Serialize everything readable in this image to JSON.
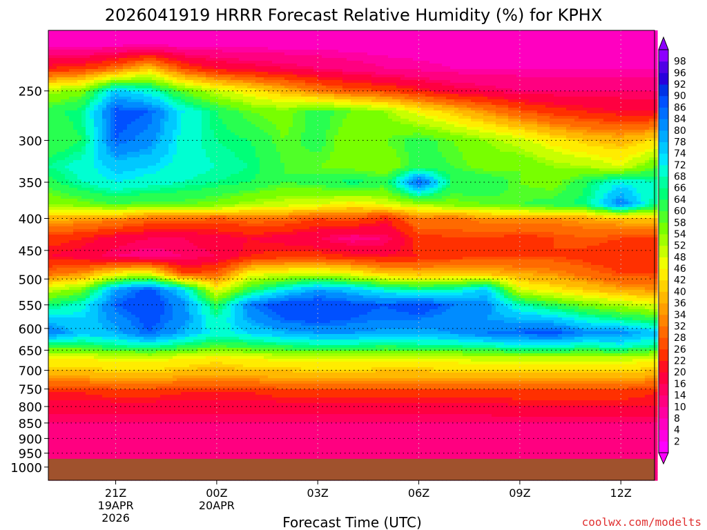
{
  "chart_data": {
    "type": "heatmap",
    "title": "2026041919 HRRR Forecast Relative Humidity (%) for KPHX",
    "xlabel": "Forecast Time (UTC)",
    "ylabel": "",
    "watermark": "coolwx.com/modelts",
    "x_ticks": [
      {
        "hour": 21,
        "label": "21Z",
        "sub": [
          "19APR",
          "2026"
        ]
      },
      {
        "hour": 24,
        "label": "00Z",
        "sub": [
          "20APR"
        ]
      },
      {
        "hour": 27,
        "label": "03Z",
        "sub": []
      },
      {
        "hour": 30,
        "label": "06Z",
        "sub": []
      },
      {
        "hour": 33,
        "label": "09Z",
        "sub": []
      },
      {
        "hour": 36,
        "label": "12Z",
        "sub": []
      }
    ],
    "xlim": [
      19,
      37
    ],
    "y_ticks": [
      250,
      300,
      350,
      400,
      450,
      500,
      550,
      600,
      650,
      700,
      750,
      800,
      850,
      900,
      950,
      1000
    ],
    "ylim": [
      200,
      1050
    ],
    "ground_level_hpa": 970,
    "ground_color": "#a0522d",
    "colorbar": {
      "levels": [
        2,
        4,
        8,
        10,
        14,
        16,
        20,
        22,
        26,
        28,
        32,
        34,
        36,
        40,
        42,
        46,
        48,
        52,
        54,
        58,
        60,
        64,
        66,
        68,
        72,
        74,
        78,
        80,
        84,
        86,
        90,
        92,
        96,
        98
      ],
      "colors": [
        "#ff00ff",
        "#ff00e0",
        "#ff00c0",
        "#ff00a0",
        "#ff0080",
        "#ff0060",
        "#ff0040",
        "#ff1020",
        "#ff3000",
        "#ff5000",
        "#ff6a00",
        "#ff8400",
        "#ff9e00",
        "#ffb800",
        "#ffd200",
        "#ffec00",
        "#f0ff00",
        "#c8ff00",
        "#a0ff00",
        "#78ff00",
        "#50ff28",
        "#28ff50",
        "#00ff78",
        "#00ffa0",
        "#00ffd2",
        "#00e6ff",
        "#00c8ff",
        "#00aaff",
        "#008cff",
        "#006eff",
        "#0050ff",
        "#0032e6",
        "#2800dc",
        "#5000e6",
        "#8c00ff"
      ]
    },
    "humidity_profile_note": "",
    "series": [
      {
        "pressure": 210,
        "rh": [
          6,
          6,
          6,
          6,
          6,
          6,
          6,
          6,
          6,
          6,
          6,
          6,
          6,
          6,
          6,
          6,
          6,
          6,
          6
        ]
      },
      {
        "pressure": 230,
        "rh": [
          22,
          24,
          30,
          40,
          26,
          20,
          18,
          16,
          14,
          12,
          10,
          9,
          8,
          8,
          8,
          8,
          8,
          8,
          8
        ]
      },
      {
        "pressure": 250,
        "rh": [
          52,
          56,
          76,
          70,
          58,
          50,
          44,
          38,
          32,
          28,
          26,
          22,
          18,
          16,
          14,
          14,
          14,
          14,
          14
        ]
      },
      {
        "pressure": 270,
        "rh": [
          62,
          66,
          88,
          86,
          72,
          64,
          58,
          56,
          62,
          58,
          54,
          46,
          40,
          34,
          28,
          24,
          22,
          20,
          20
        ]
      },
      {
        "pressure": 300,
        "rh": [
          60,
          64,
          86,
          82,
          70,
          66,
          64,
          58,
          62,
          54,
          58,
          62,
          58,
          54,
          50,
          44,
          40,
          38,
          42
        ]
      },
      {
        "pressure": 330,
        "rh": [
          66,
          70,
          76,
          74,
          70,
          68,
          66,
          60,
          58,
          56,
          54,
          62,
          60,
          56,
          58,
          54,
          52,
          48,
          58
        ]
      },
      {
        "pressure": 350,
        "rh": [
          62,
          68,
          72,
          70,
          68,
          66,
          64,
          60,
          62,
          66,
          62,
          88,
          64,
          64,
          58,
          56,
          64,
          72,
          68
        ]
      },
      {
        "pressure": 380,
        "rh": [
          54,
          56,
          60,
          58,
          58,
          56,
          52,
          50,
          48,
          44,
          48,
          52,
          56,
          58,
          60,
          62,
          66,
          84,
          66
        ]
      },
      {
        "pressure": 400,
        "rh": [
          38,
          36,
          34,
          30,
          30,
          28,
          30,
          30,
          26,
          28,
          22,
          32,
          30,
          34,
          34,
          34,
          36,
          38,
          40
        ]
      },
      {
        "pressure": 430,
        "rh": [
          24,
          22,
          18,
          16,
          16,
          18,
          20,
          18,
          16,
          12,
          14,
          24,
          26,
          26,
          24,
          26,
          28,
          26,
          26
        ]
      },
      {
        "pressure": 460,
        "rh": [
          20,
          18,
          14,
          12,
          14,
          16,
          22,
          24,
          24,
          22,
          20,
          22,
          24,
          26,
          26,
          26,
          24,
          22,
          22
        ]
      },
      {
        "pressure": 490,
        "rh": [
          30,
          34,
          44,
          48,
          26,
          28,
          46,
          48,
          50,
          46,
          40,
          38,
          40,
          38,
          36,
          34,
          30,
          26,
          26
        ]
      },
      {
        "pressure": 520,
        "rh": [
          50,
          56,
          80,
          88,
          74,
          46,
          62,
          72,
          80,
          76,
          70,
          66,
          68,
          76,
          48,
          44,
          40,
          36,
          34
        ]
      },
      {
        "pressure": 550,
        "rh": [
          64,
          70,
          86,
          90,
          82,
          62,
          84,
          90,
          90,
          88,
          86,
          90,
          84,
          82,
          68,
          62,
          56,
          52,
          48
        ]
      },
      {
        "pressure": 580,
        "rh": [
          76,
          74,
          82,
          88,
          82,
          68,
          80,
          86,
          88,
          86,
          84,
          84,
          82,
          80,
          78,
          76,
          70,
          66,
          62
        ]
      },
      {
        "pressure": 610,
        "rh": [
          84,
          76,
          78,
          86,
          78,
          70,
          74,
          78,
          80,
          80,
          78,
          78,
          80,
          84,
          86,
          88,
          82,
          82,
          76
        ]
      },
      {
        "pressure": 640,
        "rh": [
          62,
          62,
          66,
          68,
          64,
          60,
          62,
          64,
          66,
          66,
          64,
          66,
          66,
          68,
          70,
          70,
          68,
          70,
          66
        ]
      },
      {
        "pressure": 670,
        "rh": [
          46,
          46,
          48,
          48,
          46,
          44,
          46,
          48,
          48,
          48,
          48,
          48,
          48,
          50,
          50,
          50,
          50,
          50,
          48
        ]
      },
      {
        "pressure": 700,
        "rh": [
          40,
          40,
          42,
          42,
          40,
          38,
          40,
          40,
          42,
          42,
          40,
          40,
          42,
          42,
          42,
          42,
          42,
          42,
          40
        ]
      },
      {
        "pressure": 730,
        "rh": [
          32,
          32,
          34,
          34,
          32,
          32,
          32,
          34,
          34,
          34,
          34,
          34,
          34,
          34,
          34,
          34,
          34,
          34,
          32
        ]
      },
      {
        "pressure": 760,
        "rh": [
          22,
          22,
          24,
          24,
          22,
          22,
          22,
          24,
          24,
          24,
          24,
          24,
          24,
          24,
          24,
          24,
          24,
          24,
          22
        ]
      },
      {
        "pressure": 800,
        "rh": [
          18,
          18,
          18,
          18,
          18,
          18,
          18,
          18,
          18,
          18,
          18,
          18,
          18,
          18,
          20,
          20,
          20,
          20,
          20
        ]
      },
      {
        "pressure": 850,
        "rh": [
          14,
          14,
          14,
          14,
          14,
          14,
          14,
          14,
          14,
          14,
          14,
          14,
          14,
          14,
          14,
          14,
          14,
          14,
          14
        ]
      },
      {
        "pressure": 900,
        "rh": [
          12,
          12,
          12,
          12,
          12,
          12,
          12,
          12,
          12,
          12,
          12,
          12,
          12,
          12,
          12,
          12,
          12,
          12,
          12
        ]
      },
      {
        "pressure": 960,
        "rh": [
          10,
          10,
          10,
          10,
          10,
          10,
          10,
          10,
          10,
          10,
          10,
          10,
          10,
          10,
          10,
          10,
          10,
          10,
          10
        ]
      }
    ],
    "x_hours": [
      19,
      20,
      21,
      22,
      23,
      24,
      25,
      26,
      27,
      28,
      29,
      30,
      31,
      32,
      33,
      34,
      35,
      36,
      37
    ],
    "grid": true,
    "legend_placement": "right"
  }
}
